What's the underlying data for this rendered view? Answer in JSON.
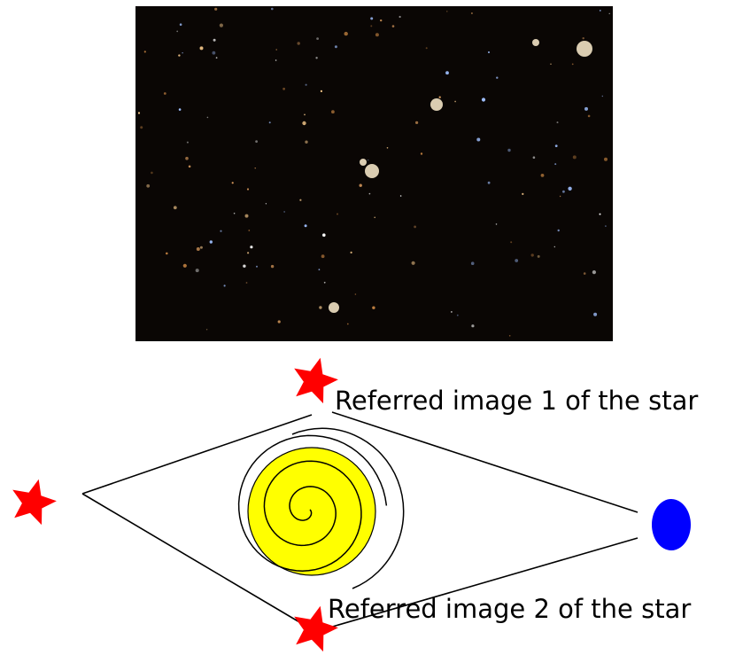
{
  "labels": [
    "Referred image 1 of  the star",
    "Referred image 2 of  the star"
  ]
}
